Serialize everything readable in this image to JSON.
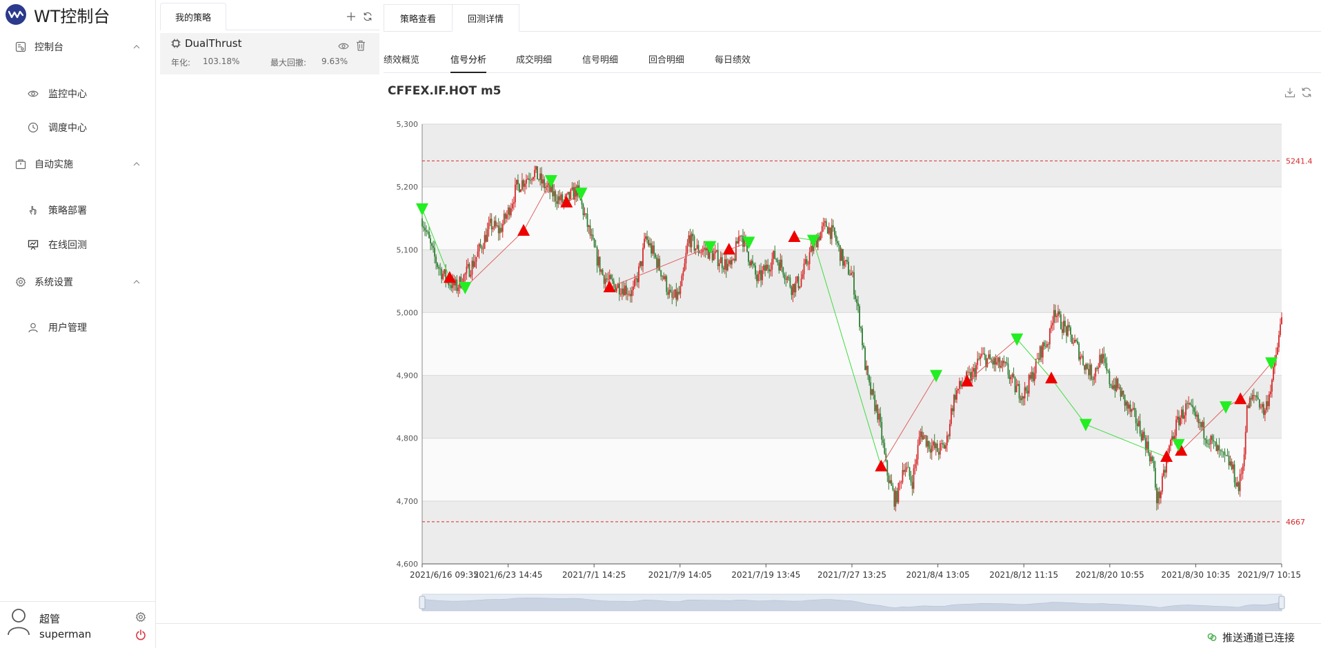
{
  "app": {
    "title": "WT控制台",
    "brand_color": "#2b3a8c"
  },
  "sidebar": {
    "groups": [
      {
        "label": "控制台",
        "icon": "dashboard-icon",
        "items": [
          {
            "label": "监控中心",
            "icon": "eye-icon"
          },
          {
            "label": "调度中心",
            "icon": "clock-icon"
          }
        ]
      },
      {
        "label": "自动实施",
        "icon": "package-icon",
        "items": [
          {
            "label": "策略部署",
            "icon": "hand-pointer-icon"
          },
          {
            "label": "在线回测",
            "icon": "presentation-chart-icon"
          }
        ]
      },
      {
        "label": "系统设置",
        "icon": "gear-icon",
        "items": [
          {
            "label": "用户管理",
            "icon": "user-icon"
          }
        ]
      }
    ]
  },
  "user": {
    "name": "超管",
    "id": "superman"
  },
  "strategy_panel": {
    "tab": "我的策略",
    "card": {
      "name": "DualThrust",
      "annual_label": "年化:",
      "annual_value": "103.18%",
      "dd_label": "最大回撤:",
      "dd_value": "9.63%"
    }
  },
  "main": {
    "tabs": [
      "策略查看",
      "回测详情"
    ],
    "active_tab": 1,
    "subtabs": [
      "绩效概览",
      "信号分析",
      "成交明细",
      "信号明细",
      "回合明细",
      "每日绩效"
    ],
    "active_subtab": 1,
    "chart_title": "CFFEX.IF.HOT m5"
  },
  "status": {
    "text": "推送通道已连接",
    "color": "#4caf50"
  },
  "chart_data": {
    "type": "candlestick",
    "title": "CFFEX.IF.HOT m5",
    "ylim": [
      4600,
      5300
    ],
    "yticks": [
      "5,300",
      "5,200",
      "5,100",
      "5,000",
      "4,900",
      "4,800",
      "4,700",
      "4,600"
    ],
    "xticks": [
      "2021/6/16 09:35",
      "2021/6/23 14:45",
      "2021/7/1 14:25",
      "2021/7/9 14:05",
      "2021/7/19 13:45",
      "2021/7/27 13:25",
      "2021/8/4 13:05",
      "2021/8/12 11:15",
      "2021/8/20 10:55",
      "2021/8/30 10:35",
      "2021/9/7 10:15"
    ],
    "markLines": [
      {
        "value": 5241.4,
        "label": "5241.4"
      },
      {
        "value": 4667,
        "label": "4667"
      }
    ],
    "up_color": "#d62728",
    "down_color": "#2e7d32",
    "band_color": "#ececec",
    "price_path": [
      [
        0,
        5150
      ],
      [
        0.012,
        5095
      ],
      [
        0.02,
        5070
      ],
      [
        0.03,
        5050
      ],
      [
        0.04,
        5040
      ],
      [
        0.05,
        5060
      ],
      [
        0.06,
        5080
      ],
      [
        0.07,
        5110
      ],
      [
        0.08,
        5140
      ],
      [
        0.09,
        5130
      ],
      [
        0.1,
        5160
      ],
      [
        0.11,
        5200
      ],
      [
        0.13,
        5225
      ],
      [
        0.14,
        5205
      ],
      [
        0.155,
        5185
      ],
      [
        0.165,
        5175
      ],
      [
        0.18,
        5195
      ],
      [
        0.19,
        5150
      ],
      [
        0.2,
        5100
      ],
      [
        0.21,
        5060
      ],
      [
        0.22,
        5045
      ],
      [
        0.235,
        5040
      ],
      [
        0.245,
        5030
      ],
      [
        0.255,
        5080
      ],
      [
        0.26,
        5120
      ],
      [
        0.27,
        5090
      ],
      [
        0.28,
        5060
      ],
      [
        0.29,
        5020
      ],
      [
        0.3,
        5030
      ],
      [
        0.305,
        5070
      ],
      [
        0.31,
        5120
      ],
      [
        0.32,
        5100
      ],
      [
        0.33,
        5100
      ],
      [
        0.34,
        5090
      ],
      [
        0.35,
        5080
      ],
      [
        0.36,
        5070
      ],
      [
        0.37,
        5130
      ],
      [
        0.38,
        5090
      ],
      [
        0.39,
        5050
      ],
      [
        0.395,
        5060
      ],
      [
        0.41,
        5090
      ],
      [
        0.42,
        5070
      ],
      [
        0.43,
        5040
      ],
      [
        0.44,
        5050
      ],
      [
        0.45,
        5090
      ],
      [
        0.46,
        5120
      ],
      [
        0.47,
        5140
      ],
      [
        0.48,
        5120
      ],
      [
        0.49,
        5080
      ],
      [
        0.5,
        5060
      ],
      [
        0.51,
        4980
      ],
      [
        0.515,
        4920
      ],
      [
        0.52,
        4880
      ],
      [
        0.525,
        4860
      ],
      [
        0.53,
        4840
      ],
      [
        0.535,
        4800
      ],
      [
        0.54,
        4750
      ],
      [
        0.55,
        4700
      ],
      [
        0.555,
        4720
      ],
      [
        0.56,
        4760
      ],
      [
        0.57,
        4730
      ],
      [
        0.575,
        4770
      ],
      [
        0.58,
        4810
      ],
      [
        0.59,
        4790
      ],
      [
        0.6,
        4780
      ],
      [
        0.61,
        4790
      ],
      [
        0.615,
        4840
      ],
      [
        0.62,
        4870
      ],
      [
        0.63,
        4890
      ],
      [
        0.64,
        4900
      ],
      [
        0.65,
        4930
      ],
      [
        0.665,
        4920
      ],
      [
        0.68,
        4910
      ],
      [
        0.69,
        4880
      ],
      [
        0.7,
        4870
      ],
      [
        0.71,
        4900
      ],
      [
        0.72,
        4940
      ],
      [
        0.73,
        4960
      ],
      [
        0.735,
        5010
      ],
      [
        0.74,
        4990
      ],
      [
        0.75,
        4970
      ],
      [
        0.76,
        4950
      ],
      [
        0.77,
        4920
      ],
      [
        0.78,
        4900
      ],
      [
        0.79,
        4930
      ],
      [
        0.8,
        4890
      ],
      [
        0.81,
        4880
      ],
      [
        0.82,
        4850
      ],
      [
        0.83,
        4830
      ],
      [
        0.84,
        4800
      ],
      [
        0.85,
        4760
      ],
      [
        0.855,
        4700
      ],
      [
        0.86,
        4720
      ],
      [
        0.87,
        4790
      ],
      [
        0.88,
        4830
      ],
      [
        0.89,
        4850
      ],
      [
        0.9,
        4830
      ],
      [
        0.91,
        4810
      ],
      [
        0.92,
        4790
      ],
      [
        0.93,
        4770
      ],
      [
        0.94,
        4760
      ],
      [
        0.95,
        4720
      ],
      [
        0.955,
        4760
      ],
      [
        0.96,
        4850
      ],
      [
        0.97,
        4870
      ],
      [
        0.98,
        4840
      ],
      [
        0.99,
        4900
      ],
      [
        1.0,
        4990
      ]
    ],
    "buy_markers": [
      {
        "x": 0.032,
        "y": 5055
      },
      {
        "x": 0.118,
        "y": 5130
      },
      {
        "x": 0.168,
        "y": 5175
      },
      {
        "x": 0.218,
        "y": 5040
      },
      {
        "x": 0.357,
        "y": 5100
      },
      {
        "x": 0.433,
        "y": 5120
      },
      {
        "x": 0.534,
        "y": 4755
      },
      {
        "x": 0.634,
        "y": 4890
      },
      {
        "x": 0.732,
        "y": 4895
      },
      {
        "x": 0.866,
        "y": 4770
      },
      {
        "x": 0.883,
        "y": 4780
      },
      {
        "x": 0.952,
        "y": 4862
      }
    ],
    "sell_markers": [
      {
        "x": 0.0,
        "y": 5165
      },
      {
        "x": 0.05,
        "y": 5040
      },
      {
        "x": 0.15,
        "y": 5210
      },
      {
        "x": 0.185,
        "y": 5190
      },
      {
        "x": 0.335,
        "y": 5105
      },
      {
        "x": 0.38,
        "y": 5112
      },
      {
        "x": 0.455,
        "y": 5115
      },
      {
        "x": 0.598,
        "y": 4900
      },
      {
        "x": 0.692,
        "y": 4958
      },
      {
        "x": 0.772,
        "y": 4822
      },
      {
        "x": 0.88,
        "y": 4790
      },
      {
        "x": 0.935,
        "y": 4850
      },
      {
        "x": 0.988,
        "y": 4920
      }
    ],
    "trade_links": [
      [
        0.0,
        5165,
        0.032,
        5055
      ],
      [
        0.05,
        5040,
        0.118,
        5130
      ],
      [
        0.118,
        5130,
        0.15,
        5210
      ],
      [
        0.168,
        5175,
        0.185,
        5190
      ],
      [
        0.218,
        5040,
        0.335,
        5105
      ],
      [
        0.357,
        5100,
        0.38,
        5112
      ],
      [
        0.433,
        5120,
        0.455,
        5115
      ],
      [
        0.455,
        5115,
        0.534,
        4755
      ],
      [
        0.534,
        4755,
        0.598,
        4900
      ],
      [
        0.634,
        4890,
        0.692,
        4958
      ],
      [
        0.692,
        4958,
        0.732,
        4895
      ],
      [
        0.732,
        4895,
        0.772,
        4822
      ],
      [
        0.772,
        4822,
        0.866,
        4770
      ],
      [
        0.883,
        4780,
        0.935,
        4850
      ],
      [
        0.935,
        4850,
        0.952,
        4862
      ],
      [
        0.952,
        4862,
        0.988,
        4920
      ]
    ]
  }
}
